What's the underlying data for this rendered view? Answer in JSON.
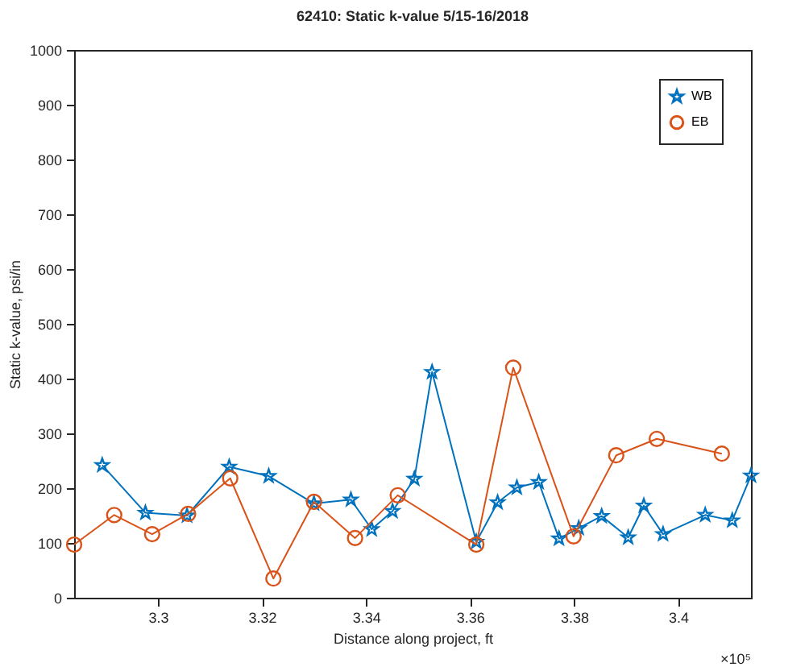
{
  "chart_data": {
    "type": "line",
    "title": "62410: Static k-value 5/15-16/2018",
    "xlabel": "Distance along project, ft",
    "ylabel": "Static k-value, psi/in",
    "xlim": [
      3.2839,
      3.414
    ],
    "xticks": [
      3.3,
      3.32,
      3.34,
      3.36,
      3.38,
      3.4
    ],
    "ylim": [
      0,
      1000
    ],
    "yticks": [
      0,
      100,
      200,
      300,
      400,
      500,
      600,
      700,
      800,
      900,
      {
        "value": 1000,
        "label": "1000"
      }
    ],
    "grid": false,
    "legend": "top right",
    "annotations": [
      "×10⁵"
    ],
    "series": [
      {
        "name": "WB",
        "color": "#0072bd",
        "marker": "star",
        "x": [
          3.2893,
          3.2976,
          3.3056,
          3.3137,
          3.3213,
          3.33,
          3.3371,
          3.3411,
          3.3451,
          3.3493,
          3.3527,
          3.3612,
          3.3653,
          3.369,
          3.3732,
          3.3771,
          3.3809,
          3.3853,
          3.3904,
          3.3934,
          3.3971,
          3.4052,
          3.4104,
          3.414
        ],
        "values": [
          242,
          155,
          150,
          239,
          222,
          172,
          179,
          125,
          158,
          217,
          412,
          102,
          174,
          201,
          211,
          108,
          127,
          149,
          110,
          168,
          116,
          151,
          141,
          223
        ]
      },
      {
        "name": "EB",
        "color": "#d95319",
        "marker": "circle",
        "x": [
          3.2839,
          3.2916,
          3.2989,
          3.3058,
          3.3139,
          3.3222,
          3.33,
          3.3379,
          3.3461,
          3.3612,
          3.3683,
          3.3799,
          3.3881,
          3.3959,
          3.4084
        ],
        "values": [
          97,
          151,
          116,
          153,
          218,
          35,
          175,
          109,
          187,
          97,
          420,
          112,
          260,
          290,
          263
        ]
      }
    ]
  }
}
